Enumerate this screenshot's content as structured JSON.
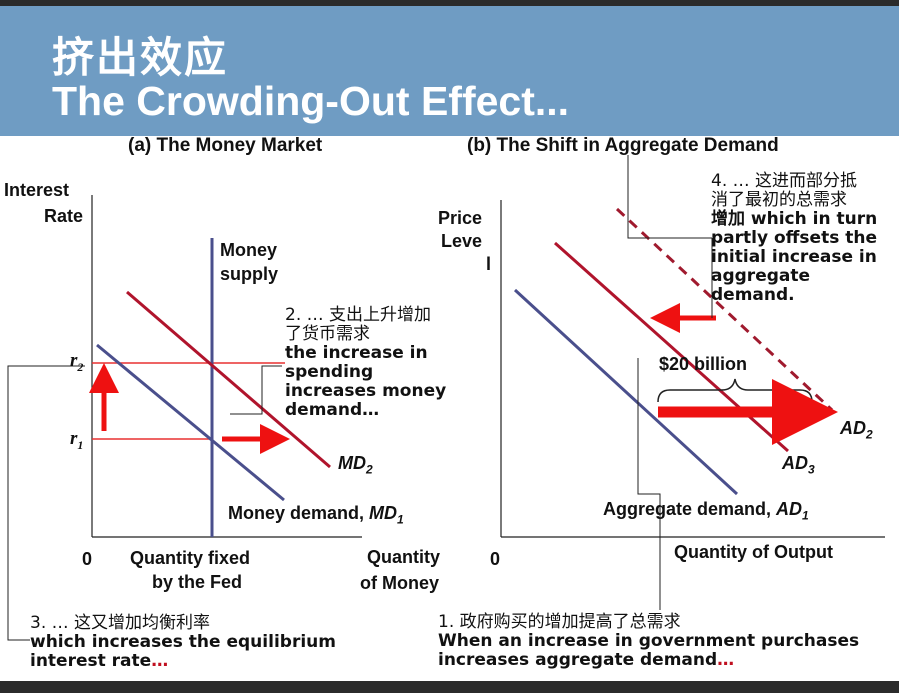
{
  "header": {
    "title_cn": "挤出效应",
    "title_en": "The Crowding-Out Effect..."
  },
  "panel_a": {
    "heading": "(a) The Money Market",
    "y_axis_label_line1": "Interest",
    "y_axis_label_line2": "Rate",
    "x_axis_label_line1": "Quantity",
    "x_axis_label_line2": "of Money",
    "origin": "0",
    "supply_label_line1": "Money",
    "supply_label_line2": "supply",
    "fixed_label_line1": "Quantity fixed",
    "fixed_label_line2": "by the Fed",
    "md2_label": "MD",
    "md2_sub": "2",
    "md1_label_text": "Money demand, ",
    "md1_label": "MD",
    "md1_sub": "1",
    "r2_label": "r",
    "r2_sub": "2",
    "r1_label": "r",
    "r1_sub": "1"
  },
  "panel_b": {
    "heading": "(b) The Shift in Aggregate Demand",
    "y_axis_label_line1": "Price",
    "y_axis_label_line2": "Leve",
    "y_axis_label_line3": "l",
    "x_axis_label": "Quantity of Output",
    "origin": "0",
    "shift_label": "$20 billion",
    "ad2_label": "AD",
    "ad2_sub": "2",
    "ad3_label": "AD",
    "ad3_sub": "3",
    "ad1_label_text": "Aggregate demand, ",
    "ad1_label": "AD",
    "ad1_sub": "1"
  },
  "annotations": {
    "note1_cn": "1.  政府购买的增加提高了总需求",
    "note1_line1": "When an increase in government purchases",
    "note1_line2": "increases aggregate demand",
    "note1_ellipsis": "…",
    "note2_cn_line1": "2. … 支出上升增加",
    "note2_cn_line2": "了货币需求",
    "note2_line1": " the increase in",
    "note2_line2": "spending",
    "note2_line3": "increases money",
    "note2_line4": "demand…",
    "note3_cn": "3. … 这又增加均衡利率",
    "note3_line1": "which increases the equilibrium",
    "note3_line2": "interest rate",
    "note3_ellipsis": "…",
    "note4_cn_line1": "4. … 这进而部分抵",
    "note4_cn_line2": "消了最初的总需求",
    "note4_cn_line3": "增加 which in turn",
    "note4_line1": "partly offsets the",
    "note4_line2": "initial increase in",
    "note4_line3": "aggregate",
    "note4_line4": "demand."
  },
  "colors": {
    "title_band": "#6f9cc3",
    "demand_blue": "#4a4f8c",
    "supply_blue": "#4a4f8c",
    "md2_red": "#b0142c",
    "arrow_red": "#ee1111",
    "ad2_dashed": "#a01a2e",
    "guide_red": "#e83030"
  }
}
